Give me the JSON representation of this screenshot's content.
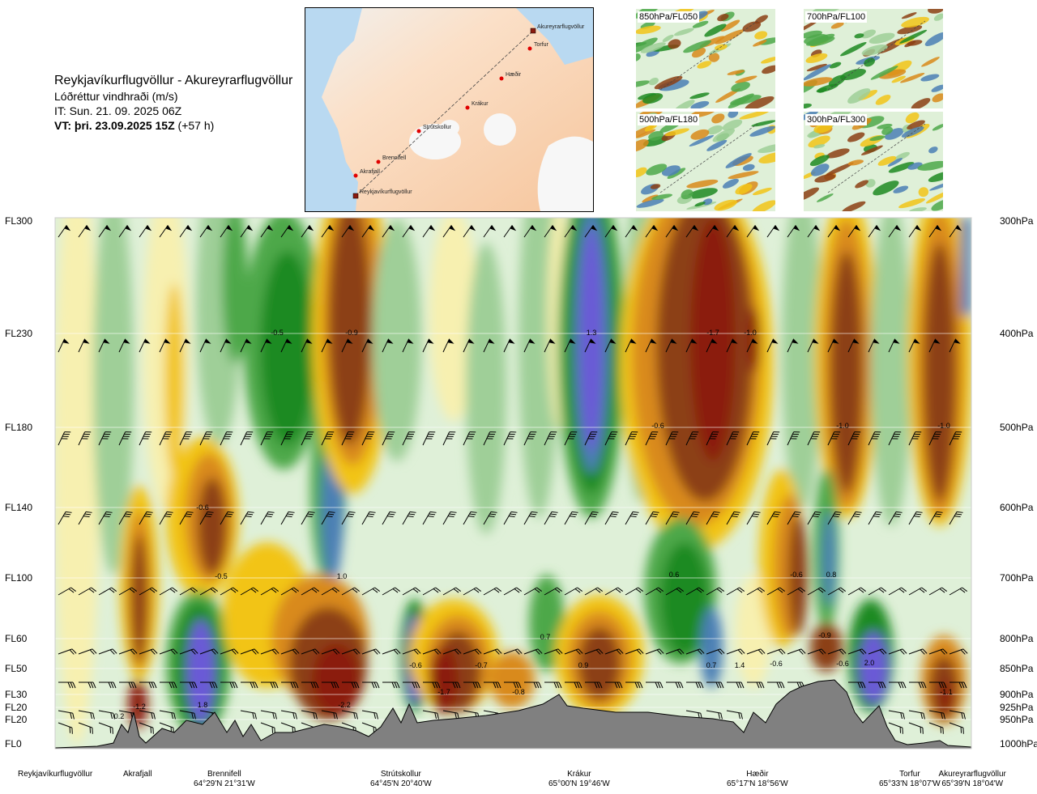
{
  "title": {
    "route": "Reykjavíkurflugvöllur - Akureyrarflugvöllur",
    "parameter": "Lóðréttur vindhraði (m/s)",
    "issue": "IT: Sun. 21. 09. 2025 06Z",
    "valid_bold": "VT: þri. 23.09.2025 15Z",
    "valid_lead": " (+57 h)"
  },
  "map": {
    "points": [
      {
        "name": "Akureyrarflugvöllur"
      },
      {
        "name": "Torfur"
      },
      {
        "name": "Hæðir"
      },
      {
        "name": "Krákur"
      },
      {
        "name": "Strútskollur"
      },
      {
        "name": "Brennifell"
      },
      {
        "name": "Akrafjall"
      },
      {
        "name": "Reykjavíkurflugvöllur"
      }
    ]
  },
  "thumbnails": [
    {
      "label": "850hPa/FL050"
    },
    {
      "label": "700hPa/FL100"
    },
    {
      "label": "500hPa/FL180"
    },
    {
      "label": "300hPa/FL300"
    }
  ],
  "chart_data": {
    "type": "heatmap",
    "title": "Lóðréttur vindhraði (m/s)",
    "left_axis": [
      "FL300",
      "FL230",
      "FL180",
      "FL140",
      "FL100",
      "FL60",
      "FL50",
      "FL30",
      "FL20",
      "FL20",
      "FL0"
    ],
    "right_axis": [
      "300hPa",
      "400hPa",
      "500hPa",
      "600hPa",
      "700hPa",
      "800hPa",
      "850hPa",
      "900hPa",
      "925hPa",
      "950hPa",
      "1000hPa"
    ],
    "pressure_levels_hpa": [
      300,
      400,
      500,
      600,
      700,
      800,
      850,
      900,
      925,
      950,
      1000
    ],
    "colors": {
      "down_strong": "#8b1a0e",
      "down_med": "#8c3f14",
      "down_light": "#d98a1a",
      "down_weak": "#f2c418",
      "neutral_pos": "#f7f0b0",
      "neutral_neg": "#dff0d8",
      "up_weak": "#9fcf98",
      "up_med": "#4ea84a",
      "up_strong": "#1f8a22",
      "up_vstrong": "#4b7fb5",
      "up_extreme": "#6a5ad6",
      "terrain": "#808080"
    },
    "value_labels": [
      {
        "text": "-0.5"
      },
      {
        "text": "-0.9"
      },
      {
        "text": "1.3"
      },
      {
        "text": "-1.7"
      },
      {
        "text": "-1.0"
      },
      {
        "text": "-0.6"
      },
      {
        "text": "-1.0"
      },
      {
        "text": "-1.0"
      },
      {
        "text": "-0.6"
      },
      {
        "text": "-0.5"
      },
      {
        "text": "1.0"
      },
      {
        "text": "0.6"
      },
      {
        "text": "-0.6"
      },
      {
        "text": "0.8"
      },
      {
        "text": "0.7"
      },
      {
        "text": "1.4"
      },
      {
        "text": "-0.6"
      },
      {
        "text": "-0.7"
      },
      {
        "text": "0.9"
      },
      {
        "text": "0.7"
      },
      {
        "text": "-0.6"
      },
      {
        "text": "-0.9"
      },
      {
        "text": "-0.6"
      },
      {
        "text": "2.0"
      },
      {
        "text": "-1.7"
      },
      {
        "text": "-0.8"
      },
      {
        "text": "-1.1"
      },
      {
        "text": "0.2"
      },
      {
        "text": "-1.2"
      },
      {
        "text": "1.8"
      },
      {
        "text": "-2.2"
      }
    ],
    "locations": [
      {
        "name": "Reykjavíkurflugvöllur",
        "coord": ""
      },
      {
        "name": "Akrafjall",
        "coord": ""
      },
      {
        "name": "Brennifell",
        "coord": "64°29'N 21°31'W"
      },
      {
        "name": "Strútskollur",
        "coord": "64°45'N 20°40'W"
      },
      {
        "name": "Krákur",
        "coord": "65°00'N 19°46'W"
      },
      {
        "name": "Hæðir",
        "coord": "65°17'N 18°56'W"
      },
      {
        "name": "Torfur",
        "coord": "65°33'N 18°07'W"
      },
      {
        "name": "Akureyrarflugvöllur",
        "coord": "65°39'N 18°04'W"
      }
    ]
  }
}
